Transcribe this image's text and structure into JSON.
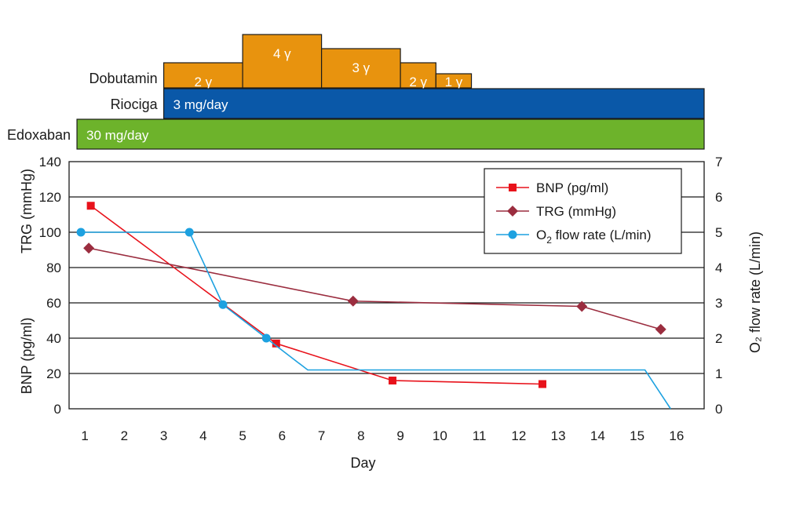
{
  "chart_data": {
    "type": "line",
    "xlabel": "Day",
    "ylabel_left": [
      "BNP (pg/ml)",
      "TRG (mmHg)"
    ],
    "ylabel_right": "O₂ flow rate (L/min)",
    "ylim_left": [
      0,
      140
    ],
    "yticks_left": [
      "0",
      "20",
      "40",
      "60",
      "80",
      "100",
      "120",
      "140"
    ],
    "ylim_right": [
      0,
      7
    ],
    "yticks_right": [
      "0",
      "1",
      "2",
      "3",
      "4",
      "5",
      "6",
      "7"
    ],
    "xlim": [
      0.6,
      16.7
    ],
    "xticks": [
      "1",
      "2",
      "3",
      "4",
      "5",
      "6",
      "7",
      "8",
      "9",
      "10",
      "11",
      "12",
      "13",
      "14",
      "15",
      "16"
    ],
    "grid": true,
    "legend_position": "top-right",
    "series": [
      {
        "name": "BNP (pg/ml)",
        "axis": "left",
        "color": "#e8121b",
        "marker": "square",
        "x": [
          1.15,
          5.85,
          8.8,
          12.6
        ],
        "y": [
          115,
          37,
          16,
          14
        ]
      },
      {
        "name": "TRG (mmHg)",
        "axis": "left",
        "color": "#9b2d3f",
        "marker": "diamond",
        "x": [
          1.1,
          7.8,
          13.6,
          15.6
        ],
        "y": [
          91,
          61,
          58,
          45
        ]
      },
      {
        "name": "O2 flow rate (L/min)",
        "legend_main": "O",
        "legend_sub": "2",
        "legend_rest": " flow rate (L/min)",
        "axis": "right",
        "color": "#1da1e0",
        "marker": "circle",
        "x": [
          0.9,
          3.65,
          4.5,
          5.6,
          6.65,
          15.2,
          15.85
        ],
        "y": [
          5,
          5,
          2.95,
          2,
          1.1,
          1.1,
          0
        ],
        "marker_indices": [
          0,
          1,
          2,
          3
        ]
      }
    ],
    "treatments": [
      {
        "drug": "Dobutamin",
        "color": "#e8930e",
        "segments": [
          {
            "start": 3,
            "end": 5,
            "level": 2,
            "label": "2 γ"
          },
          {
            "start": 5,
            "end": 7,
            "level": 4,
            "label": "4 γ"
          },
          {
            "start": 7,
            "end": 9,
            "level": 3,
            "label": "3 γ"
          },
          {
            "start": 9,
            "end": 9.9,
            "level": 2,
            "label": "2 γ"
          },
          {
            "start": 9.9,
            "end": 10.8,
            "level": 1,
            "label": "1 γ"
          }
        ]
      },
      {
        "drug": "Riociga",
        "color": "#0a58a8",
        "segments": [
          {
            "start": 3,
            "end": 16.7,
            "label": "3 mg/day"
          }
        ]
      },
      {
        "drug": "Edoxaban",
        "color": "#6db32b",
        "segments": [
          {
            "start": 0.8,
            "end": 16.7,
            "label": "30 mg/day"
          }
        ]
      }
    ]
  }
}
